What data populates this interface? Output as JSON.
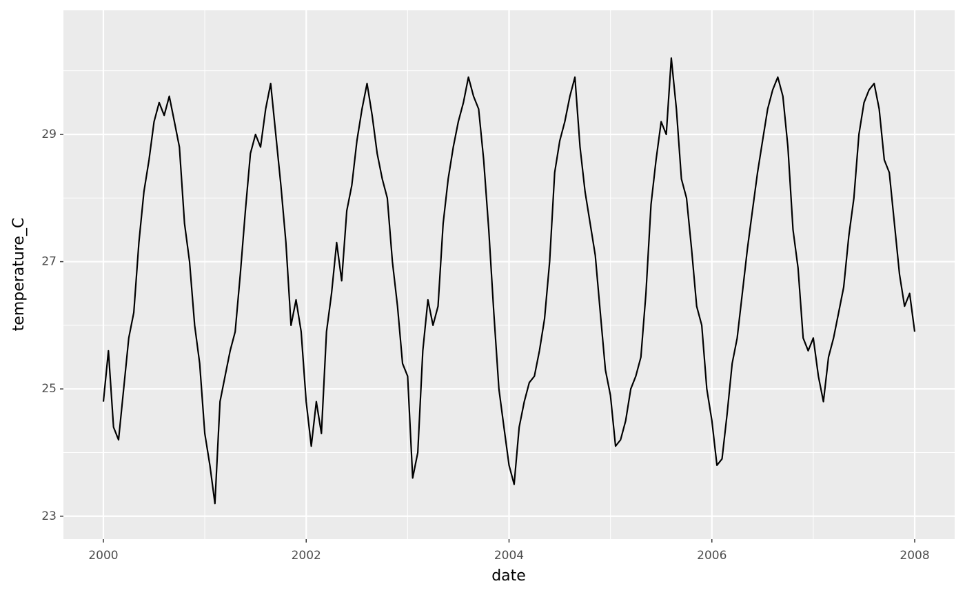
{
  "chart_data": {
    "type": "line",
    "x_label": "date",
    "y_label": "temperature_C",
    "x": [
      2000.0,
      2000.05,
      2000.1,
      2000.15,
      2000.2,
      2000.25,
      2000.3,
      2000.35,
      2000.4,
      2000.45,
      2000.5,
      2000.55,
      2000.6,
      2000.65,
      2000.7,
      2000.75,
      2000.8,
      2000.85,
      2000.9,
      2000.95,
      2001.0,
      2001.05,
      2001.1,
      2001.15,
      2001.2,
      2001.25,
      2001.3,
      2001.35,
      2001.4,
      2001.45,
      2001.5,
      2001.55,
      2001.6,
      2001.65,
      2001.7,
      2001.75,
      2001.8,
      2001.85,
      2001.9,
      2001.95,
      2002.0,
      2002.05,
      2002.1,
      2002.15,
      2002.2,
      2002.25,
      2002.3,
      2002.35,
      2002.4,
      2002.45,
      2002.5,
      2002.55,
      2002.6,
      2002.65,
      2002.7,
      2002.75,
      2002.8,
      2002.85,
      2002.9,
      2002.95,
      2003.0,
      2003.05,
      2003.1,
      2003.15,
      2003.2,
      2003.25,
      2003.3,
      2003.35,
      2003.4,
      2003.45,
      2003.5,
      2003.55,
      2003.6,
      2003.65,
      2003.7,
      2003.75,
      2003.8,
      2003.85,
      2003.9,
      2003.95,
      2004.0,
      2004.05,
      2004.1,
      2004.15,
      2004.2,
      2004.25,
      2004.3,
      2004.35,
      2004.4,
      2004.45,
      2004.5,
      2004.55,
      2004.6,
      2004.65,
      2004.7,
      2004.75,
      2004.8,
      2004.85,
      2004.9,
      2004.95,
      2005.0,
      2005.05,
      2005.1,
      2005.15,
      2005.2,
      2005.25,
      2005.3,
      2005.35,
      2005.4,
      2005.45,
      2005.5,
      2005.55,
      2005.6,
      2005.65,
      2005.7,
      2005.75,
      2005.8,
      2005.85,
      2005.9,
      2005.95,
      2006.0,
      2006.05,
      2006.1,
      2006.15,
      2006.2,
      2006.25,
      2006.3,
      2006.35,
      2006.4,
      2006.45,
      2006.5,
      2006.55,
      2006.6,
      2006.65,
      2006.7,
      2006.75,
      2006.8,
      2006.85,
      2006.9,
      2006.95,
      2007.0,
      2007.05,
      2007.1,
      2007.15,
      2007.2,
      2007.25,
      2007.3,
      2007.35,
      2007.4,
      2007.45,
      2007.5,
      2007.55,
      2007.6,
      2007.65,
      2007.7,
      2007.75,
      2007.8,
      2007.85,
      2007.9,
      2007.95,
      2008.0
    ],
    "series": [
      {
        "color": "#000000",
        "values": [
          24.8,
          25.6,
          24.4,
          24.2,
          25.0,
          25.8,
          26.2,
          27.3,
          28.1,
          28.6,
          29.2,
          29.5,
          29.3,
          29.6,
          29.2,
          28.8,
          27.6,
          27.0,
          26.0,
          25.4,
          24.3,
          23.8,
          23.2,
          24.8,
          25.2,
          25.6,
          25.9,
          26.8,
          27.8,
          28.7,
          29.0,
          28.8,
          29.4,
          29.8,
          29.0,
          28.2,
          27.3,
          26.0,
          26.4,
          25.9,
          24.8,
          24.1,
          24.8,
          24.3,
          25.9,
          26.5,
          27.3,
          26.7,
          27.8,
          28.2,
          28.9,
          29.4,
          29.8,
          29.3,
          28.7,
          28.3,
          28.0,
          27.0,
          26.3,
          25.4,
          25.2,
          23.6,
          24.0,
          25.6,
          26.4,
          26.0,
          26.3,
          27.6,
          28.3,
          28.8,
          29.2,
          29.5,
          29.9,
          29.6,
          29.4,
          28.6,
          27.5,
          26.2,
          25.0,
          24.4,
          23.8,
          23.5,
          24.4,
          24.8,
          25.1,
          25.2,
          25.6,
          26.1,
          27.0,
          28.4,
          28.9,
          29.2,
          29.6,
          29.9,
          28.8,
          28.1,
          27.6,
          27.1,
          26.2,
          25.3,
          24.9,
          24.1,
          24.2,
          24.5,
          25.0,
          25.2,
          25.5,
          26.5,
          27.9,
          28.6,
          29.2,
          29.0,
          30.2,
          29.4,
          28.3,
          28.0,
          27.2,
          26.3,
          26.0,
          25.0,
          24.5,
          23.8,
          23.9,
          24.6,
          25.4,
          25.8,
          26.5,
          27.2,
          27.8,
          28.4,
          28.9,
          29.4,
          29.7,
          29.9,
          29.6,
          28.8,
          27.5,
          26.9,
          25.8,
          25.6,
          25.8,
          25.2,
          24.8,
          25.5,
          25.8,
          26.2,
          26.6,
          27.4,
          28.0,
          29.0,
          29.5,
          29.7,
          29.8,
          29.4,
          28.6,
          28.4,
          27.6,
          26.8,
          26.3,
          26.5,
          25.9
        ]
      }
    ],
    "xlim": [
      1999.606,
      2008.394
    ],
    "xticks": [
      2000,
      2002,
      2004,
      2006,
      2008
    ],
    "ylim": [
      22.64,
      30.95
    ],
    "yticks": [
      23,
      25,
      27,
      29
    ],
    "grid": true
  }
}
